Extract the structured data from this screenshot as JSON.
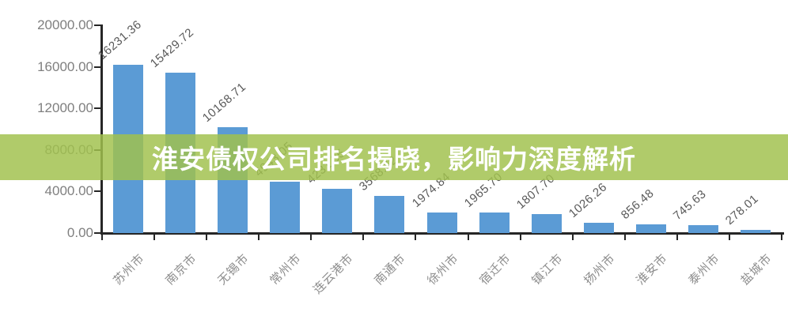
{
  "banner": {
    "title": "淮安债权公司排名揭晓，影响力深度解析",
    "bg_color": "#a1c14e",
    "text_color": "#ffffff"
  },
  "chart_data": {
    "type": "bar",
    "title": "",
    "xlabel": "",
    "ylabel": "",
    "categories": [
      "苏州市",
      "南京市",
      "无锡市",
      "常州市",
      "连云港市",
      "南通市",
      "徐州市",
      "宿迁市",
      "镇江市",
      "扬州市",
      "淮安市",
      "泰州市",
      "盐城市"
    ],
    "values": [
      16231.36,
      15429.72,
      10168.71,
      4943.05,
      4231.35,
      3568.62,
      1974.84,
      1965.7,
      1807.7,
      1026.26,
      856.48,
      745.63,
      278.01
    ],
    "value_labels": [
      "16231.36",
      "15429.72",
      "10168.71",
      "4943.05",
      "4231.35",
      "3568.62",
      "1974.84",
      "1965.70",
      "1807.70",
      "1026.26",
      "856.48",
      "745.63",
      "278.01"
    ],
    "ylim": [
      0,
      20000
    ],
    "ytick_interval": 4000,
    "ytick_labels": [
      "0.00",
      "4000.00",
      "8000.00",
      "12000.00",
      "16000.00",
      "20000.00"
    ],
    "bar_color": "#5b9bd5",
    "axis_color": "#262626",
    "grid": false,
    "legend": null
  }
}
